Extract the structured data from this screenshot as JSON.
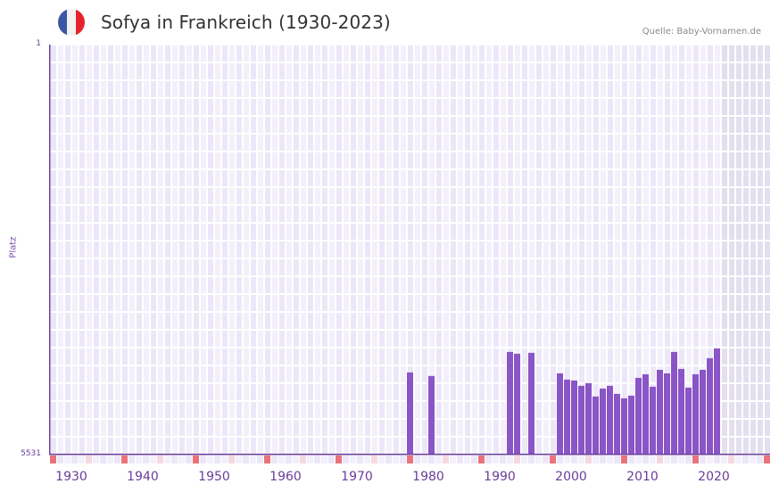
{
  "header": {
    "title": "Sofya in Frankreich (1930-2023)",
    "source": "Quelle: Baby-Vornamen.de",
    "flag_icon": "france-flag-icon",
    "flag_colors": [
      "#3a56a5",
      "#f2f2f2",
      "#e8222d"
    ]
  },
  "axis": {
    "y_title": "Platz",
    "y_top_label": "1",
    "y_bottom_label": "5531",
    "x_labels": [
      "1930",
      "1940",
      "1950",
      "1960",
      "1970",
      "1980",
      "1990",
      "2000",
      "2010",
      "2020"
    ]
  },
  "colors": {
    "bar": "#8a55c6",
    "axis": "#6a3d9a",
    "grid_cell_a": "#f3f0fb",
    "grid_cell_b": "#ece7f8",
    "future_cell": "#e3dfee",
    "decade_marker": "#e8737c",
    "half_decade_marker": "#f5d8e0"
  },
  "chart_data": {
    "type": "bar",
    "title": "Sofya in Frankreich (1930-2023)",
    "xlabel": "",
    "ylabel": "Platz",
    "y_inverted": true,
    "ylim": [
      5531,
      1
    ],
    "x_range": [
      1929,
      2029
    ],
    "future_shaded_from": 2023,
    "grid": true,
    "legend": null,
    "x": [
      1979,
      1982,
      1993,
      1994,
      1996,
      2000,
      2001,
      2002,
      2003,
      2004,
      2005,
      2006,
      2007,
      2008,
      2009,
      2010,
      2011,
      2012,
      2013,
      2014,
      2015,
      2016,
      2017,
      2018,
      2019,
      2020,
      2021,
      2022
    ],
    "values": [
      4423,
      4471,
      4147,
      4171,
      4159,
      4436,
      4520,
      4532,
      4604,
      4568,
      4748,
      4640,
      4604,
      4712,
      4772,
      4736,
      4496,
      4448,
      4616,
      4388,
      4436,
      4147,
      4376,
      4628,
      4448,
      4388,
      4231,
      4099
    ]
  }
}
